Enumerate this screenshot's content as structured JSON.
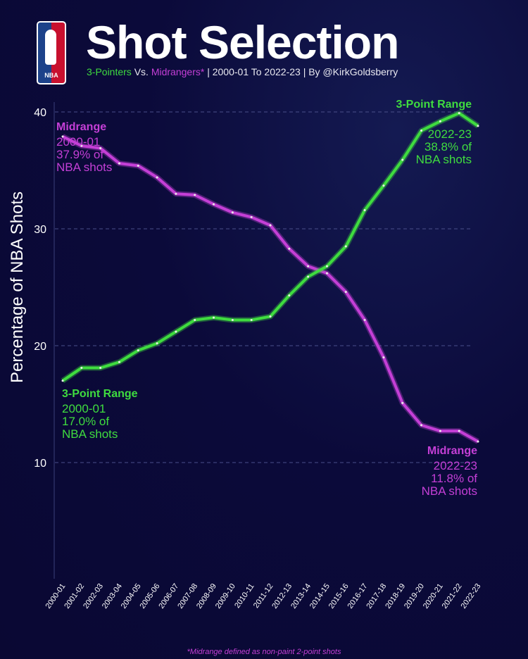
{
  "header": {
    "title": "Shot Selection",
    "subtitle_3pt": "3-Pointers",
    "subtitle_vs": " Vs. ",
    "subtitle_mid": "Midrangers*",
    "subtitle_rest": "  | 2000-01 To 2022-23 | By @KirkGoldsberry",
    "logo_text": "NBA"
  },
  "footnote": "*Midrange defined as non-paint 2-point shots",
  "annotations": {
    "mid_start": {
      "title": "Midrange",
      "l1": "2000-01",
      "l2": "37.9% of",
      "l3": "NBA shots"
    },
    "mid_end": {
      "title": "Midrange",
      "l1": "2022-23",
      "l2": "11.8% of",
      "l3": "NBA shots"
    },
    "tp_start": {
      "title": "3-Point Range",
      "l1": "2000-01",
      "l2": "17.0% of",
      "l3": "NBA shots"
    },
    "tp_end": {
      "title": "3-Point Range",
      "l1": "2022-23",
      "l2": "38.8% of",
      "l3": "NBA shots"
    }
  },
  "chart_data": {
    "type": "line",
    "title": "Shot Selection",
    "ylabel": "Percentage of NBA Shots",
    "xlabel": "",
    "ylim": [
      0,
      40
    ],
    "yticks": [
      10,
      20,
      30,
      40
    ],
    "grid": "horizontal dashed",
    "categories": [
      "2000-01",
      "2001-02",
      "2002-03",
      "2003-04",
      "2004-05",
      "2005-06",
      "2006-07",
      "2007-08",
      "2008-09",
      "2009-10",
      "2010-11",
      "2011-12",
      "2012-13",
      "2013-14",
      "2014-15",
      "2015-16",
      "2016-17",
      "2017-18",
      "2018-19",
      "2019-20",
      "2020-21",
      "2021-22",
      "2022-23"
    ],
    "series": [
      {
        "name": "Midrange",
        "color": "#c43fd6",
        "values": [
          37.9,
          37.1,
          36.9,
          35.6,
          35.4,
          34.4,
          33.0,
          32.9,
          32.1,
          31.4,
          31.0,
          30.3,
          28.3,
          26.8,
          26.2,
          24.6,
          22.2,
          19.0,
          15.1,
          13.2,
          12.7,
          12.7,
          11.8
        ]
      },
      {
        "name": "3-Point Range",
        "color": "#3fdc3f",
        "values": [
          17.0,
          18.1,
          18.1,
          18.6,
          19.6,
          20.2,
          21.2,
          22.2,
          22.4,
          22.2,
          22.2,
          22.5,
          24.3,
          25.9,
          26.8,
          28.5,
          31.6,
          33.7,
          35.9,
          38.4,
          39.2,
          39.9,
          38.8
        ]
      }
    ]
  }
}
